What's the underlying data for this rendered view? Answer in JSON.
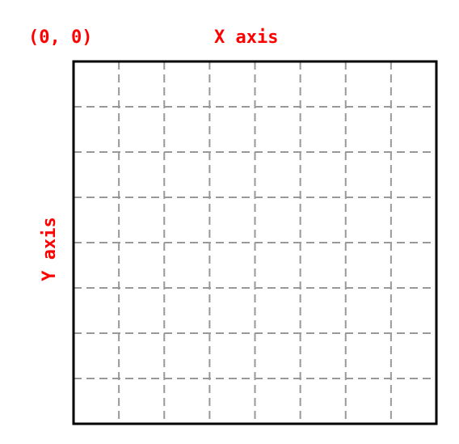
{
  "labels": {
    "origin": "(0, 0)",
    "x_axis": "X axis",
    "y_axis": "Y axis"
  },
  "grid": {
    "columns": 8,
    "rows": 8
  },
  "colors": {
    "label": "#ff0000",
    "border": "#000000",
    "grid_line": "#999999",
    "background": "#ffffff"
  }
}
